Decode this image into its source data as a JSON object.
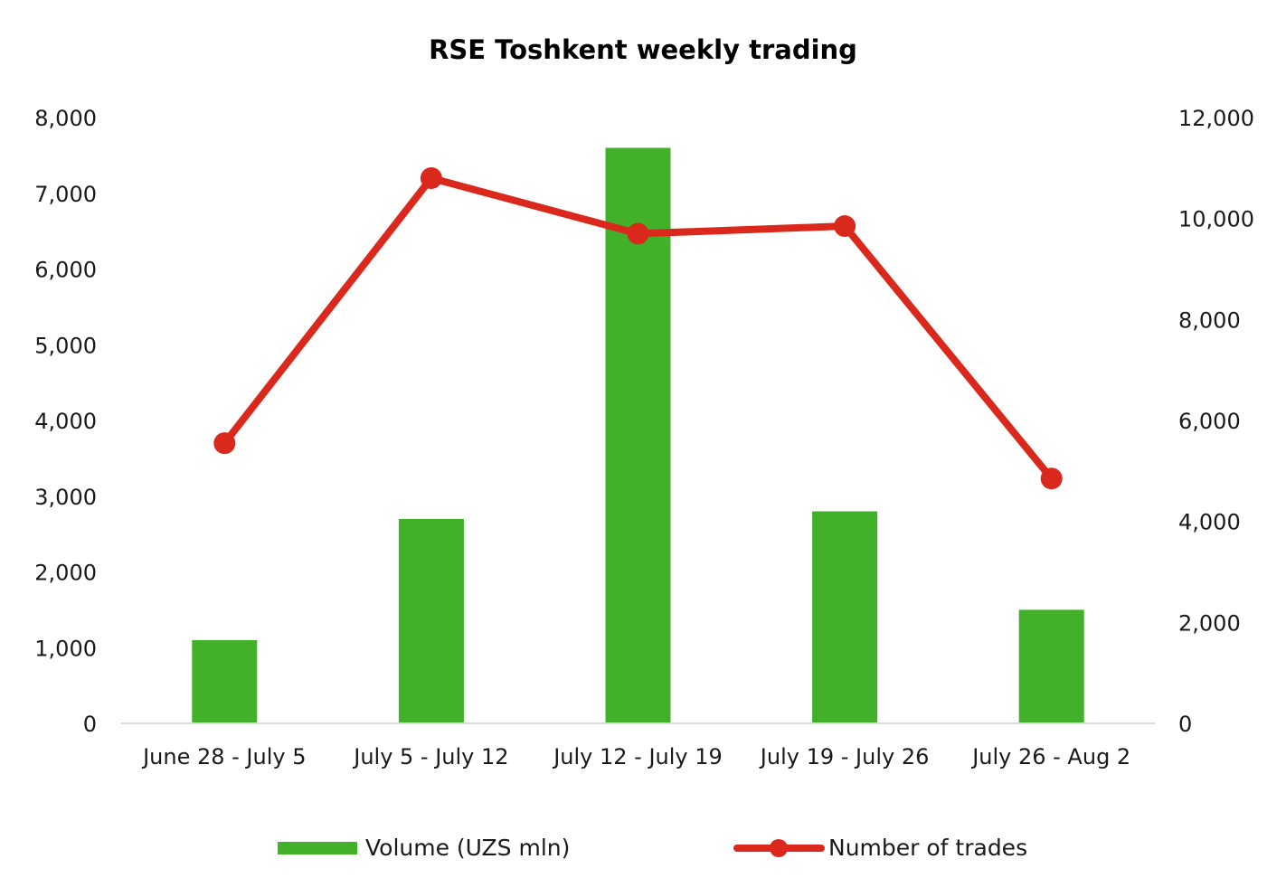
{
  "chart_data": {
    "type": "bar",
    "title": "RSE Toshkent weekly trading",
    "categories": [
      "June 28 - July 5",
      "July 5 - July 12",
      "July 12 - July 19",
      "July 19 - July 26",
      "July 26 - Aug 2"
    ],
    "series": [
      {
        "name": "Volume (UZS mln)",
        "type": "bar",
        "axis": "left",
        "color": "#43B02A",
        "values": [
          1100,
          2700,
          7600,
          2800,
          1500
        ]
      },
      {
        "name": "Number of trades",
        "type": "line",
        "axis": "right",
        "color": "#DA291C",
        "values": [
          5550,
          10800,
          9700,
          9850,
          4850
        ]
      }
    ],
    "y_left": {
      "ylim": [
        0,
        8000
      ],
      "ticks": [
        0,
        1000,
        2000,
        3000,
        4000,
        5000,
        6000,
        7000,
        8000
      ],
      "tick_labels": [
        "0",
        "1,000",
        "2,000",
        "3,000",
        "4,000",
        "5,000",
        "6,000",
        "7,000",
        "8,000"
      ]
    },
    "y_right": {
      "ylim": [
        0,
        12000
      ],
      "ticks": [
        0,
        2000,
        4000,
        6000,
        8000,
        10000,
        12000
      ],
      "tick_labels": [
        "0",
        "2,000",
        "4,000",
        "6,000",
        "8,000",
        "10,000",
        "12,000"
      ]
    },
    "xlabel": "",
    "ylabel": "",
    "grid": false,
    "legend_position": "bottom"
  }
}
